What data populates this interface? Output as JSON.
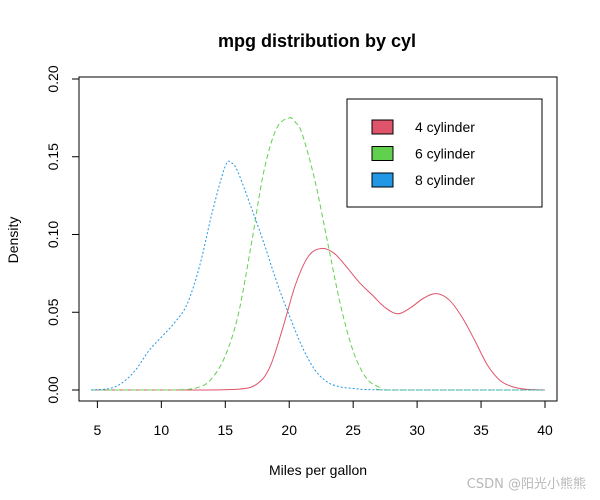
{
  "chart_data": {
    "type": "line",
    "title": "mpg distribution by cyl",
    "xlabel": "Miles per gallon",
    "ylabel": "Density",
    "xlim": [
      4.5,
      40
    ],
    "ylim": [
      0,
      0.2
    ],
    "xticks": [
      5,
      10,
      15,
      20,
      25,
      30,
      35,
      40
    ],
    "yticks": [
      0.0,
      0.05,
      0.1,
      0.15,
      0.2
    ],
    "ytick_labels": [
      "0.00",
      "0.05",
      "0.10",
      "0.15",
      "0.20"
    ],
    "grid": false,
    "legend_position": "top-right",
    "series": [
      {
        "name": "4 cylinder",
        "color": "#DF536B",
        "dash": "solid",
        "x": [
          4.5,
          12,
          16,
          17.5,
          18.5,
          19.5,
          20.5,
          21.5,
          22.5,
          23.5,
          24.5,
          25.5,
          26.5,
          27.5,
          28.5,
          29.5,
          30.5,
          31.5,
          32.5,
          33.5,
          34.5,
          35.5,
          36.5,
          37.5,
          38.5,
          40
        ],
        "y": [
          0,
          0,
          0.0005,
          0.004,
          0.015,
          0.04,
          0.068,
          0.086,
          0.091,
          0.088,
          0.079,
          0.069,
          0.061,
          0.053,
          0.049,
          0.053,
          0.059,
          0.062,
          0.058,
          0.047,
          0.032,
          0.016,
          0.006,
          0.002,
          0.0005,
          0
        ]
      },
      {
        "name": "6 cylinder",
        "color": "#61D04F",
        "dash": "dashed",
        "x": [
          4.5,
          11,
          13,
          14,
          15,
          16,
          17,
          18,
          19,
          20,
          20.5,
          21,
          22,
          23,
          24,
          25,
          26,
          27,
          28,
          40
        ],
        "y": [
          0,
          0,
          0.002,
          0.008,
          0.022,
          0.048,
          0.092,
          0.14,
          0.168,
          0.175,
          0.172,
          0.165,
          0.135,
          0.095,
          0.055,
          0.025,
          0.008,
          0.002,
          0,
          0
        ]
      },
      {
        "name": "8 cylinder",
        "color": "#2297E6",
        "dash": "dotted",
        "x": [
          4.5,
          6,
          7,
          8,
          9,
          10,
          11,
          12,
          13,
          14,
          15,
          15.5,
          16,
          17,
          18,
          19,
          20,
          21,
          22,
          23,
          24,
          25,
          26,
          28,
          30,
          40
        ],
        "y": [
          0,
          0.001,
          0.005,
          0.013,
          0.025,
          0.034,
          0.043,
          0.055,
          0.08,
          0.115,
          0.144,
          0.146,
          0.14,
          0.118,
          0.095,
          0.07,
          0.048,
          0.028,
          0.013,
          0.005,
          0.002,
          0.001,
          0.0003,
          0,
          0,
          0
        ]
      }
    ]
  },
  "watermark": "CSDN @阳光小熊熊"
}
